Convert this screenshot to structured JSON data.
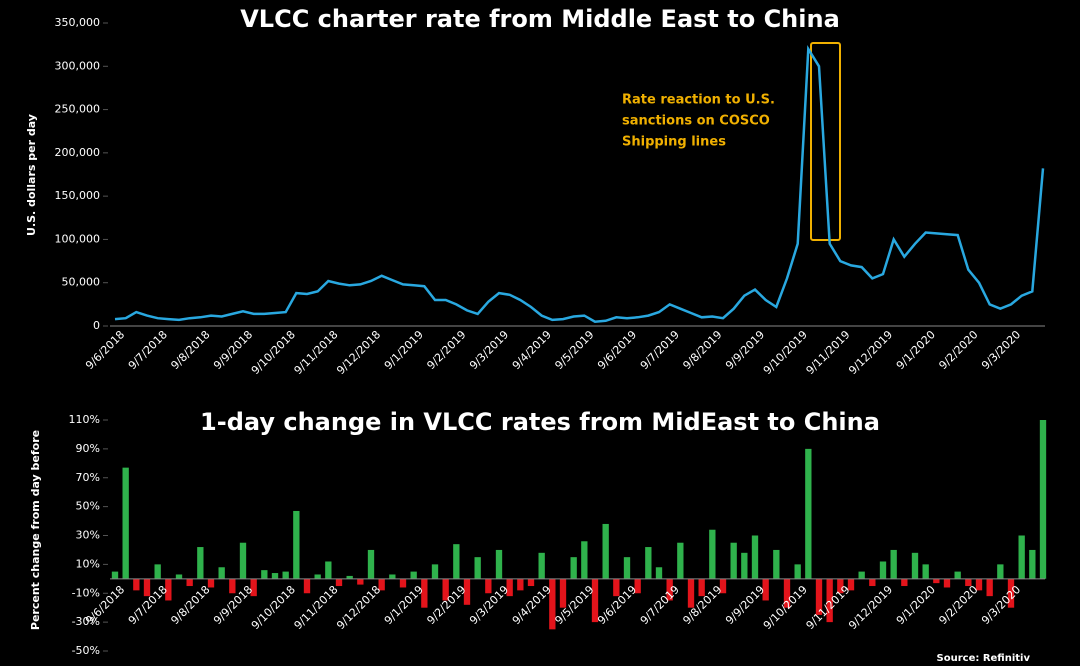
{
  "chart_data": [
    {
      "type": "line",
      "title": "VLCC charter rate from Middle East to China",
      "y_label": "U.S. dollars per day",
      "annotation": [
        "Rate reaction to U.S.",
        "sanctions on COSCO",
        "Shipping lines"
      ],
      "categories": [
        "9/6/2018",
        null,
        null,
        null,
        "9/7/2018",
        null,
        null,
        null,
        "9/8/2018",
        null,
        null,
        null,
        "9/9/2018",
        null,
        null,
        null,
        "9/10/2018",
        null,
        null,
        null,
        "9/11/2018",
        null,
        null,
        null,
        "9/12/2018",
        null,
        null,
        null,
        "9/1/2019",
        null,
        null,
        null,
        "9/2/2019",
        null,
        null,
        null,
        "9/3/2019",
        null,
        null,
        null,
        "9/4/2019",
        null,
        null,
        null,
        "9/5/2019",
        null,
        null,
        null,
        "9/6/2019",
        null,
        null,
        null,
        "9/7/2019",
        null,
        null,
        null,
        "9/8/2019",
        null,
        null,
        null,
        "9/9/2019",
        null,
        null,
        null,
        "9/10/2019",
        null,
        null,
        null,
        "9/11/2019",
        null,
        null,
        null,
        "9/12/2019",
        null,
        null,
        null,
        "9/1/2020",
        null,
        null,
        null,
        "9/2/2020",
        null,
        null,
        null,
        "9/3/2020",
        null,
        null,
        null
      ],
      "series": [
        {
          "name": "VLCC rate",
          "color": "#29a8e0",
          "values": [
            8000,
            9000,
            16000,
            12000,
            9000,
            8000,
            7000,
            9000,
            10000,
            12000,
            11000,
            14000,
            17000,
            14000,
            14000,
            15000,
            16000,
            38000,
            37000,
            40000,
            52000,
            49000,
            47000,
            48000,
            52000,
            58000,
            53000,
            48000,
            47000,
            46000,
            30000,
            30000,
            25000,
            18000,
            14000,
            28000,
            38000,
            36000,
            30000,
            22000,
            12000,
            7000,
            8000,
            11000,
            12000,
            5000,
            6000,
            10000,
            9000,
            10000,
            12000,
            16000,
            25000,
            20000,
            15000,
            10000,
            11000,
            9000,
            20000,
            35000,
            42000,
            30000,
            22000,
            55000,
            95000,
            320000,
            300000,
            95000,
            75000,
            70000,
            68000,
            55000,
            60000,
            100000,
            80000,
            95000,
            108000,
            107000,
            106000,
            105000,
            65000,
            50000,
            25000,
            20000,
            25000,
            35000,
            40000,
            182000
          ]
        }
      ],
      "ylim": [
        0,
        350000
      ],
      "yticks": [
        0,
        {
          "value": 50000,
          "label": "50,000"
        },
        {
          "value": 100000,
          "label": "100,000"
        },
        {
          "value": 150000,
          "label": "150,000"
        },
        {
          "value": 200000,
          "label": "200,000"
        },
        {
          "value": 250000,
          "label": "250,000"
        },
        {
          "value": 300000,
          "label": "300,000"
        },
        {
          "value": 350000,
          "label": "350,000"
        }
      ]
    },
    {
      "type": "bar",
      "title": "1-day change in VLCC rates from MidEast to China",
      "y_label": "Percent change from day before",
      "source": "Source: Refinitiv",
      "categories": [
        "9/6/2018",
        null,
        null,
        null,
        "9/7/2018",
        null,
        null,
        null,
        "9/8/2018",
        null,
        null,
        null,
        "9/9/2018",
        null,
        null,
        null,
        "9/10/2018",
        null,
        null,
        null,
        "9/11/2018",
        null,
        null,
        null,
        "9/12/2018",
        null,
        null,
        null,
        "9/1/2019",
        null,
        null,
        null,
        "9/2/2019",
        null,
        null,
        null,
        "9/3/2019",
        null,
        null,
        null,
        "9/4/2019",
        null,
        null,
        null,
        "9/5/2019",
        null,
        null,
        null,
        "9/6/2019",
        null,
        null,
        null,
        "9/7/2019",
        null,
        null,
        null,
        "9/8/2019",
        null,
        null,
        null,
        "9/9/2019",
        null,
        null,
        null,
        "9/10/2019",
        null,
        null,
        null,
        "9/11/2019",
        null,
        null,
        null,
        "9/12/2019",
        null,
        null,
        null,
        "9/1/2020",
        null,
        null,
        null,
        "9/2/2020",
        null,
        null,
        null,
        "9/3/2020",
        null,
        null,
        null
      ],
      "values": [
        5,
        77,
        -8,
        -12,
        10,
        -15,
        3,
        -5,
        22,
        -6,
        8,
        -10,
        25,
        -12,
        6,
        4,
        5,
        47,
        -10,
        3,
        12,
        -5,
        2,
        -4,
        20,
        -8,
        3,
        -6,
        5,
        -20,
        10,
        -15,
        24,
        -18,
        15,
        -10,
        20,
        -12,
        -8,
        -5,
        18,
        -35,
        -20,
        15,
        26,
        -30,
        38,
        -12,
        15,
        -10,
        22,
        8,
        -15,
        25,
        -20,
        -12,
        34,
        -10,
        25,
        18,
        30,
        -15,
        20,
        -20,
        10,
        90,
        -25,
        -30,
        -10,
        -8,
        5,
        -5,
        12,
        20,
        -5,
        18,
        10,
        -3,
        -6,
        5,
        -5,
        -8,
        -12,
        10,
        -20,
        30,
        20,
        110
      ],
      "positive_color": "#2fb24c",
      "negative_color": "#e3141b",
      "ylim": [
        -50,
        110
      ],
      "yticks": [
        {
          "value": -50,
          "label": "-50%"
        },
        {
          "value": -30,
          "label": "-30%"
        },
        {
          "value": -10,
          "label": "-10%"
        },
        {
          "value": 10,
          "label": "10%"
        },
        {
          "value": 30,
          "label": "30%"
        },
        {
          "value": 50,
          "label": "50%"
        },
        {
          "value": 70,
          "label": "70%"
        },
        {
          "value": 90,
          "label": "90%"
        },
        {
          "value": 110,
          "label": "110%"
        }
      ]
    }
  ]
}
